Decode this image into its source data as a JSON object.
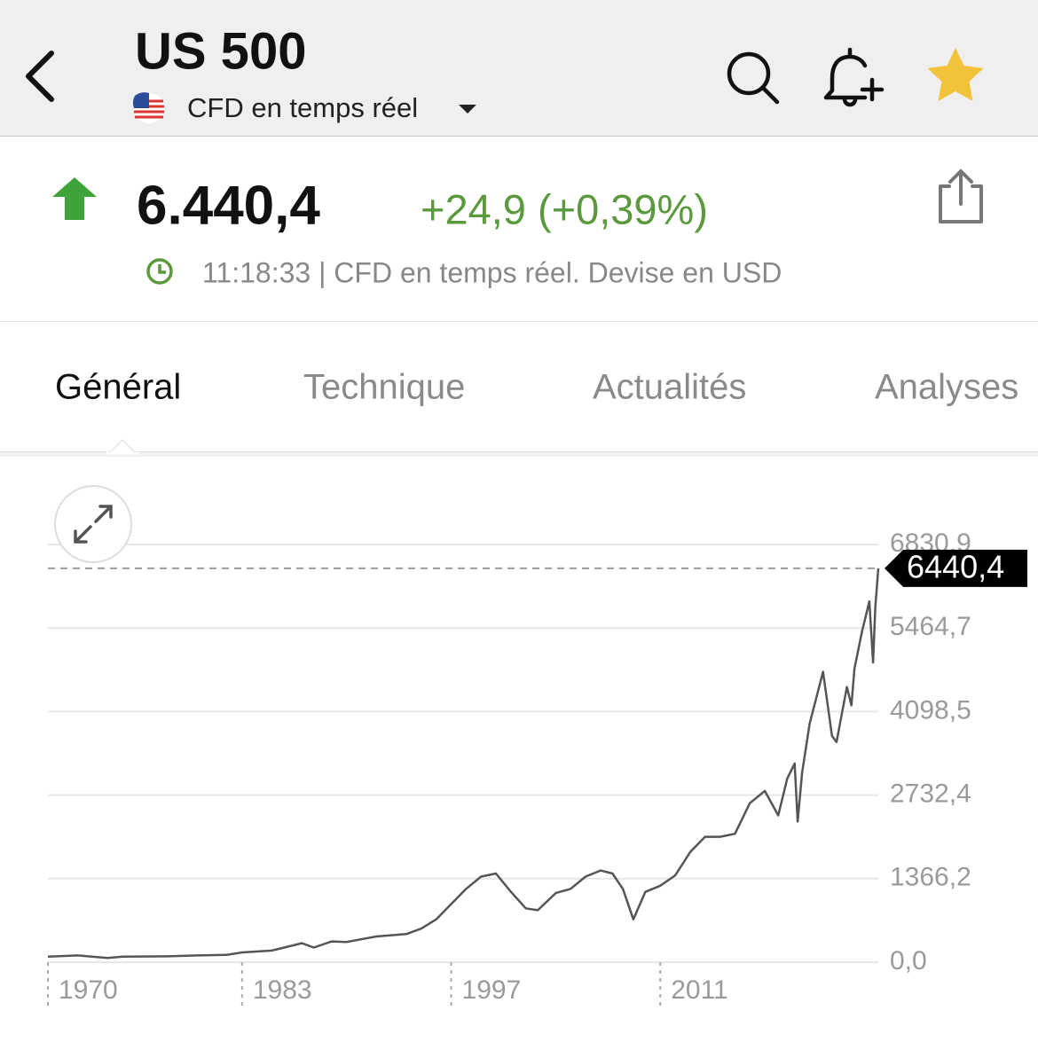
{
  "header": {
    "title": "US 500",
    "subtitle": "CFD en temps réel"
  },
  "quote": {
    "price": "6.440,4",
    "change": "+24,9 (+0,39%)",
    "info": "11:18:33 | CFD en temps réel. Devise en USD"
  },
  "tabs": [
    "Général",
    "Technique",
    "Actualités",
    "Analyses"
  ],
  "chart_data": {
    "type": "line",
    "color": "#555555",
    "x": [
      1970,
      1972,
      1974,
      1975,
      1978,
      1980,
      1982,
      1983,
      1985,
      1987,
      1987.8,
      1989,
      1990,
      1992,
      1994,
      1995,
      1996,
      1997,
      1998,
      1999,
      2000,
      2001,
      2002,
      2002.8,
      2004,
      2005,
      2006,
      2007,
      2007.8,
      2008.5,
      2009.2,
      2010,
      2011,
      2012,
      2013,
      2014,
      2015,
      2016,
      2017,
      2018,
      2018.9,
      2019.5,
      2020,
      2020.2,
      2020.5,
      2021,
      2021.9,
      2022.5,
      2022.8,
      2023.5,
      2023.8,
      2024,
      2024.5,
      2025,
      2025.25,
      2025.4,
      2025.6
    ],
    "values": [
      90,
      110,
      70,
      90,
      95,
      110,
      120,
      160,
      190,
      310,
      240,
      340,
      330,
      420,
      460,
      550,
      700,
      950,
      1200,
      1400,
      1450,
      1150,
      880,
      850,
      1130,
      1200,
      1400,
      1500,
      1450,
      1200,
      700,
      1150,
      1250,
      1420,
      1800,
      2050,
      2050,
      2100,
      2600,
      2800,
      2400,
      3000,
      3250,
      2300,
      3100,
      3900,
      4750,
      3700,
      3600,
      4500,
      4200,
      4800,
      5400,
      5900,
      4900,
      5800,
      6440.4
    ],
    "ylim": [
      0,
      6830.9
    ],
    "yticks": [
      {
        "value": 0,
        "label": "0,0"
      },
      {
        "value": 1366.2,
        "label": "1366,2"
      },
      {
        "value": 2732.4,
        "label": "2732,4"
      },
      {
        "value": 4098.5,
        "label": "4098,5"
      },
      {
        "value": 5464.7,
        "label": "5464,7"
      },
      {
        "value": 6830.9,
        "label": "6830,9"
      }
    ],
    "xlim": [
      1970,
      2025.6
    ],
    "xticks": [
      1970,
      1983,
      1997,
      2011
    ],
    "current": {
      "value": 6440.4,
      "label": "6440,4"
    },
    "grid": true
  }
}
